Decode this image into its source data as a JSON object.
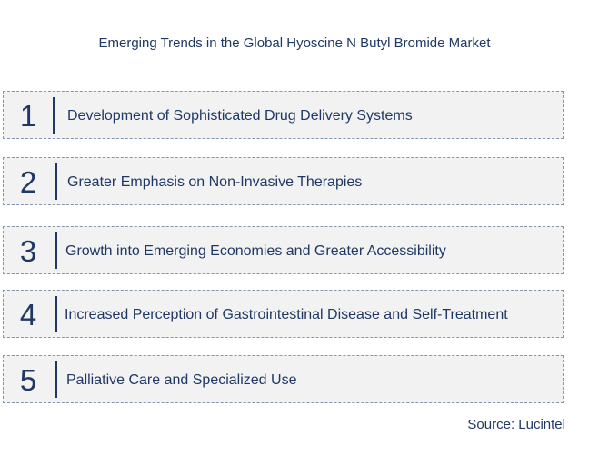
{
  "title": "Emerging Trends in the Global Hyoscine N Butyl Bromide Market",
  "trends": [
    {
      "number": "1",
      "label": "Development of Sophisticated Drug Delivery Systems"
    },
    {
      "number": "2",
      "label": "Greater Emphasis on Non-Invasive Therapies"
    },
    {
      "number": "3",
      "label": "Growth into Emerging Economies and Greater Accessibility"
    },
    {
      "number": "4",
      "label": "Increased Perception of Gastrointestinal Disease and Self-Treatment"
    },
    {
      "number": "5",
      "label": "Palliative Care and Specialized Use"
    }
  ],
  "source": "Source: Lucintel",
  "colors": {
    "text": "#1f3864",
    "row_background": "#f2f2f2",
    "row_border": "#8497b0"
  }
}
